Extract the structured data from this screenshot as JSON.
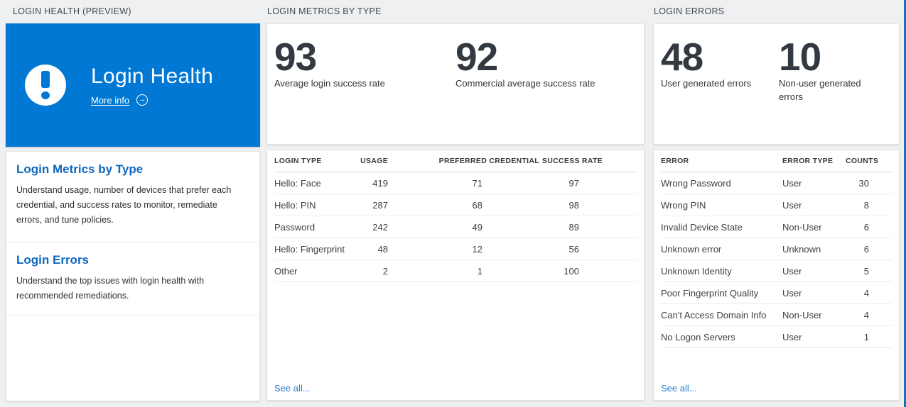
{
  "colors": {
    "hero_blue": "#0078d4",
    "heading_blue": "#0e67c0",
    "link_blue": "#2d7cd1",
    "stat_number": "#333940",
    "page_background": "#eef0f1"
  },
  "icons": {
    "alert": "exclamation-icon",
    "more_info_arrow": "arrow-right-icon",
    "arrow_glyph": "→"
  },
  "left": {
    "header": "LOGIN HEALTH (PREVIEW)",
    "hero": {
      "title": "Login Health",
      "more_info_label": "More info"
    },
    "sections": [
      {
        "title": "Login Metrics by Type",
        "description": "Understand usage, number of devices that prefer each credential, and success rates to monitor, remediate errors, and tune policies."
      },
      {
        "title": "Login Errors",
        "description": "Understand the top issues with login health with recommended remediations."
      }
    ]
  },
  "metrics": {
    "header": "LOGIN METRICS BY TYPE",
    "stats": [
      {
        "value": "93",
        "label": "Average login success rate"
      },
      {
        "value": "92",
        "label": "Commercial average success rate"
      }
    ],
    "table": {
      "columns": [
        "LOGIN TYPE",
        "USAGE",
        "PREFERRED CREDENTIAL",
        "SUCCESS RATE"
      ],
      "rows": [
        [
          "Hello: Face",
          "419",
          "71",
          "97"
        ],
        [
          "Hello: PIN",
          "287",
          "68",
          "98"
        ],
        [
          "Password",
          "242",
          "49",
          "89"
        ],
        [
          "Hello: Fingerprint",
          "48",
          "12",
          "56"
        ],
        [
          "Other",
          "2",
          "1",
          "100"
        ]
      ]
    },
    "see_all": "See all..."
  },
  "errors": {
    "header": "LOGIN ERRORS",
    "stats": [
      {
        "value": "48",
        "label": "User generated errors"
      },
      {
        "value": "10",
        "label": "Non-user generated errors"
      }
    ],
    "table": {
      "columns": [
        "ERROR",
        "ERROR TYPE",
        "COUNTS"
      ],
      "rows": [
        [
          "Wrong Password",
          "User",
          "30"
        ],
        [
          "Wrong PIN",
          "User",
          "8"
        ],
        [
          "Invalid Device State",
          "Non-User",
          "6"
        ],
        [
          "Unknown error",
          "Unknown",
          "6"
        ],
        [
          "Unknown Identity",
          "User",
          "5"
        ],
        [
          "Poor Fingerprint Quality",
          "User",
          "4"
        ],
        [
          "Can't Access Domain Info",
          "Non-User",
          "4"
        ],
        [
          "No Logon Servers",
          "User",
          "1"
        ]
      ]
    },
    "see_all": "See all..."
  }
}
